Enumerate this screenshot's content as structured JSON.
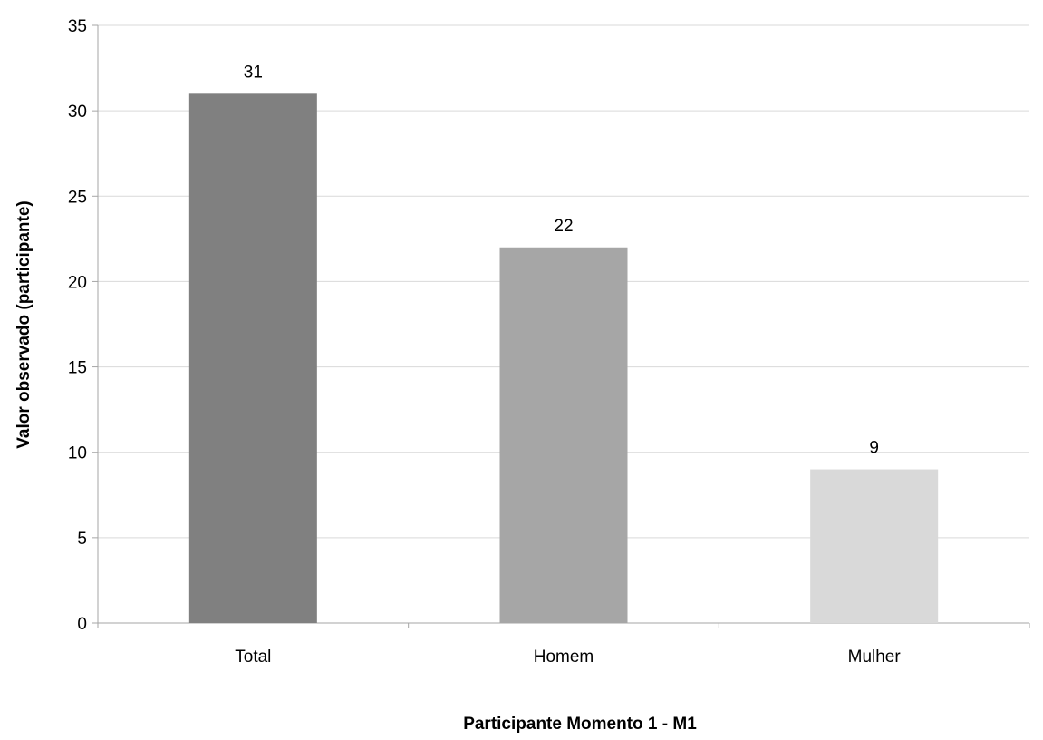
{
  "chart_data": {
    "type": "bar",
    "title": "",
    "categories": [
      "Total",
      "Homem",
      "Mulher"
    ],
    "values": [
      31,
      22,
      9
    ],
    "data_labels": [
      "31",
      "22",
      "9"
    ],
    "bar_colors": [
      "#808080",
      "#a6a6a6",
      "#d9d9d9"
    ],
    "xlabel": "Participante Momento 1 - M1",
    "ylabel": "Valor observado (participante)",
    "ylim": [
      0,
      35
    ],
    "yticks": [
      0,
      5,
      10,
      15,
      20,
      25,
      30,
      35
    ],
    "grid": true,
    "legend": "none"
  }
}
